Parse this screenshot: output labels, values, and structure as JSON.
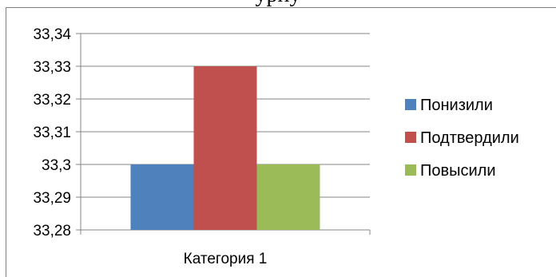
{
  "top_text": "урну",
  "chart_data": {
    "type": "bar",
    "categories": [
      "Категория 1"
    ],
    "series": [
      {
        "name": "Понизили",
        "values": [
          33.3
        ],
        "color": "#4f81bd"
      },
      {
        "name": "Подтвердили",
        "values": [
          33.33
        ],
        "color": "#c0504d"
      },
      {
        "name": "Повысили",
        "values": [
          33.3
        ],
        "color": "#9bbb59"
      }
    ],
    "ylim": [
      33.28,
      33.34
    ],
    "yticks": [
      "33,28",
      "33,29",
      "33,3",
      "33,31",
      "33,32",
      "33,33",
      "33,34"
    ],
    "grid": true,
    "legend": "right",
    "title": "",
    "xlabel": "",
    "ylabel": ""
  }
}
